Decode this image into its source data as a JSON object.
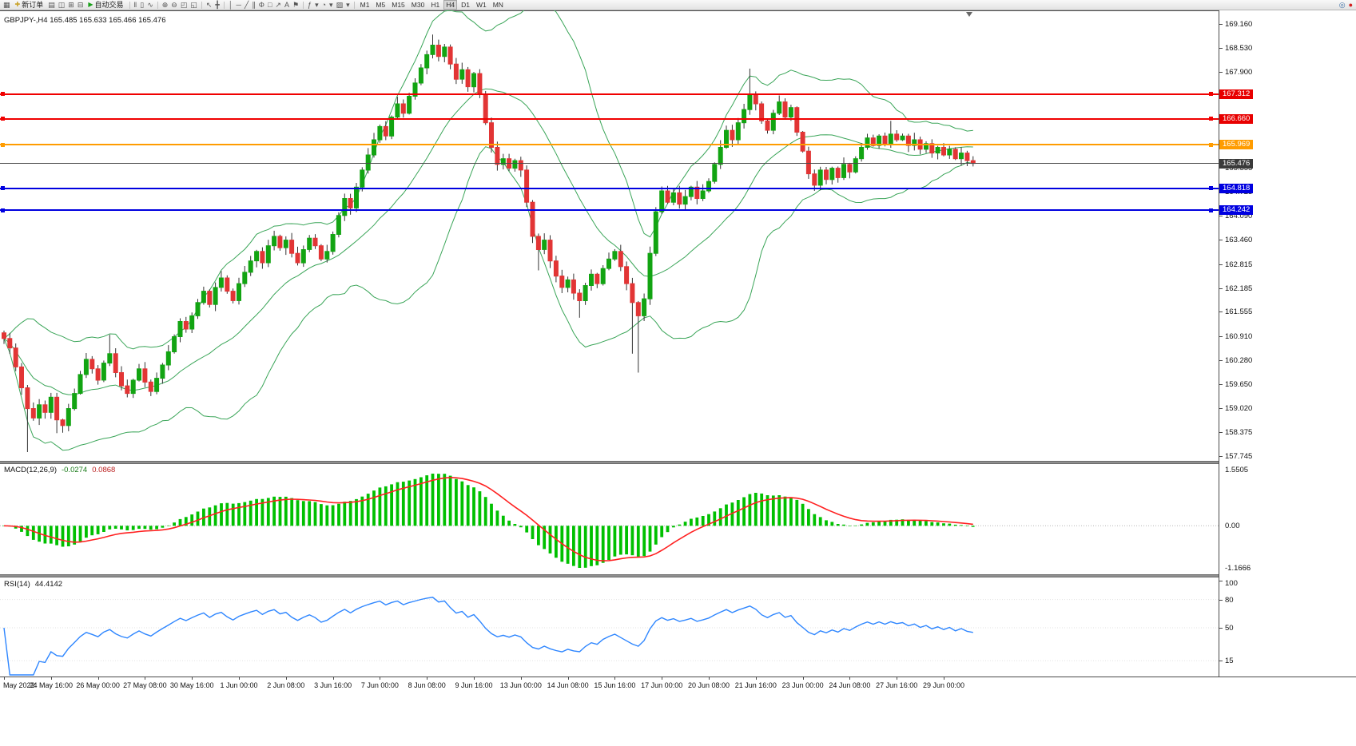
{
  "toolbar": {
    "active_timeframe": "H4",
    "items": [
      {
        "type": "icon",
        "name": "chart-window-icon",
        "glyph": "▦"
      },
      {
        "type": "button",
        "name": "new-order-button",
        "icon": "✚",
        "icon_color": "#c9a227",
        "label": "新订单"
      },
      {
        "type": "icon",
        "name": "profiles-icon",
        "glyph": "▤"
      },
      {
        "type": "icon",
        "name": "market-watch-icon",
        "glyph": "◫"
      },
      {
        "type": "icon",
        "name": "data-window-icon",
        "glyph": "⊞"
      },
      {
        "type": "icon",
        "name": "terminal-icon",
        "glyph": "⊟"
      },
      {
        "type": "button",
        "name": "autotrade-button",
        "icon": "▶",
        "icon_color": "#18a018",
        "label": "自动交易"
      },
      {
        "type": "sep"
      },
      {
        "type": "icon",
        "name": "bar-chart-type-icon",
        "glyph": "‖"
      },
      {
        "type": "icon",
        "name": "candlestick-chart-type-icon",
        "glyph": "▯"
      },
      {
        "type": "icon",
        "name": "line-chart-type-icon",
        "glyph": "∿"
      },
      {
        "type": "sep"
      },
      {
        "type": "icon",
        "name": "zoom-in-icon",
        "glyph": "⊕"
      },
      {
        "type": "icon",
        "name": "zoom-out-icon",
        "glyph": "⊖"
      },
      {
        "type": "icon",
        "name": "tile-windows-icon",
        "glyph": "◰"
      },
      {
        "type": "icon",
        "name": "cascade-windows-icon",
        "glyph": "◱"
      },
      {
        "type": "sep"
      },
      {
        "type": "icon",
        "name": "cursor-icon",
        "glyph": "↖"
      },
      {
        "type": "icon",
        "name": "crosshair-icon",
        "glyph": "╋"
      },
      {
        "type": "sep"
      },
      {
        "type": "icon",
        "name": "vertical-line-icon",
        "glyph": "│"
      },
      {
        "type": "icon",
        "name": "horizontal-line-icon",
        "glyph": "─"
      },
      {
        "type": "icon",
        "name": "trendline-icon",
        "glyph": "╱"
      },
      {
        "type": "icon",
        "name": "channel-icon",
        "glyph": "∥"
      },
      {
        "type": "icon",
        "name": "fibonacci-icon",
        "glyph": "Φ"
      },
      {
        "type": "icon",
        "name": "shapes-icon",
        "glyph": "□"
      },
      {
        "type": "icon",
        "name": "arrows-icon",
        "glyph": "↗"
      },
      {
        "type": "icon",
        "name": "text-icon",
        "glyph": "A"
      },
      {
        "type": "icon",
        "name": "label-icon",
        "glyph": "⚑"
      },
      {
        "type": "sep"
      },
      {
        "type": "icon",
        "name": "indicators-icon",
        "glyph": "ƒ"
      },
      {
        "type": "icon",
        "name": "indicators-dropdown-icon",
        "glyph": "▾"
      },
      {
        "type": "icon",
        "name": "periods-icon",
        "glyph": "◔"
      },
      {
        "type": "icon",
        "name": "periods-dropdown-icon",
        "glyph": "▾"
      },
      {
        "type": "icon",
        "name": "templates-icon",
        "glyph": "▨"
      },
      {
        "type": "icon",
        "name": "templates-dropdown-icon",
        "glyph": "▾"
      },
      {
        "type": "sep"
      },
      {
        "type": "tf",
        "label": "M1"
      },
      {
        "type": "tf",
        "label": "M5"
      },
      {
        "type": "tf",
        "label": "M15"
      },
      {
        "type": "tf",
        "label": "M30"
      },
      {
        "type": "tf",
        "label": "H1"
      },
      {
        "type": "tf",
        "label": "H4"
      },
      {
        "type": "tf",
        "label": "D1"
      },
      {
        "type": "tf",
        "label": "W1"
      },
      {
        "type": "tf",
        "label": "MN"
      },
      {
        "type": "spacer"
      },
      {
        "type": "icon",
        "name": "depth-of-market-icon",
        "glyph": "◎",
        "color": "#3a6ea5"
      },
      {
        "type": "icon",
        "name": "record-icon",
        "glyph": "●",
        "color": "#d22020"
      }
    ]
  },
  "chart_data": {
    "type": "candlestick",
    "symbol": "GBPJPY-",
    "timeframe": "H4",
    "title": "GBPJPY-,H4 165.485 165.633 165.466 165.476",
    "price_axis_range": [
      157.745,
      169.16
    ],
    "y_ticks": [
      {
        "price": 169.16,
        "label": "169.160"
      },
      {
        "price": 168.53,
        "label": "168.530"
      },
      {
        "price": 167.9,
        "label": "167.900"
      },
      {
        "price": 165.355,
        "label": "165.355"
      },
      {
        "price": 164.725,
        "label": "164.725"
      },
      {
        "price": 164.09,
        "label": "164.090"
      },
      {
        "price": 163.46,
        "label": "163.460"
      },
      {
        "price": 162.815,
        "label": "162.815"
      },
      {
        "price": 162.185,
        "label": "162.185"
      },
      {
        "price": 161.555,
        "label": "161.555"
      },
      {
        "price": 160.91,
        "label": "160.910"
      },
      {
        "price": 160.28,
        "label": "160.280"
      },
      {
        "price": 159.65,
        "label": "159.650"
      },
      {
        "price": 159.02,
        "label": "159.020"
      },
      {
        "price": 158.375,
        "label": "158.375"
      },
      {
        "price": 157.745,
        "label": "157.745"
      }
    ],
    "x_labels": [
      "May 2022",
      "24 May 16:00",
      "26 May 00:00",
      "27 May 08:00",
      "30 May 16:00",
      "1 Jun 00:00",
      "2 Jun 08:00",
      "3 Jun 16:00",
      "7 Jun 00:00",
      "8 Jun 08:00",
      "9 Jun 16:00",
      "13 Jun 00:00",
      "14 Jun 08:00",
      "15 Jun 16:00",
      "17 Jun 00:00",
      "20 Jun 08:00",
      "21 Jun 16:00",
      "23 Jun 00:00",
      "24 Jun 08:00",
      "27 Jun 16:00",
      "29 Jun 00:00"
    ],
    "candles_per_x_label": 8,
    "candles": {
      "first_open": 161.0,
      "closes": [
        160.85,
        160.6,
        160.1,
        159.55,
        159.0,
        158.75,
        159.1,
        158.9,
        159.3,
        158.7,
        158.55,
        159.0,
        159.4,
        159.9,
        160.3,
        160.05,
        159.75,
        160.2,
        160.45,
        159.95,
        159.6,
        159.4,
        159.75,
        160.05,
        159.7,
        159.45,
        159.8,
        160.15,
        160.5,
        160.9,
        161.3,
        161.1,
        161.45,
        161.8,
        162.1,
        161.75,
        162.2,
        162.45,
        162.1,
        161.85,
        162.3,
        162.6,
        162.9,
        163.15,
        162.85,
        163.3,
        163.55,
        163.25,
        163.45,
        163.1,
        162.85,
        163.2,
        163.5,
        163.3,
        162.95,
        163.15,
        163.6,
        164.1,
        164.55,
        164.3,
        164.85,
        165.3,
        165.7,
        166.1,
        166.45,
        166.2,
        166.7,
        167.05,
        166.8,
        167.25,
        167.6,
        168.0,
        168.35,
        168.6,
        168.3,
        168.55,
        168.1,
        167.7,
        167.95,
        167.5,
        167.85,
        167.3,
        166.55,
        165.9,
        165.45,
        165.6,
        165.35,
        165.55,
        165.3,
        164.45,
        163.55,
        163.2,
        163.45,
        162.9,
        162.5,
        162.2,
        162.4,
        162.05,
        161.85,
        162.25,
        162.55,
        162.3,
        162.7,
        162.95,
        163.15,
        162.75,
        162.3,
        161.8,
        161.45,
        161.9,
        163.1,
        164.2,
        164.75,
        164.45,
        164.7,
        164.4,
        164.6,
        164.85,
        164.55,
        164.75,
        165.0,
        165.45,
        165.9,
        166.35,
        166.1,
        166.55,
        166.9,
        167.3,
        167.05,
        166.6,
        166.35,
        166.8,
        167.1,
        166.7,
        166.95,
        166.3,
        165.8,
        165.2,
        164.9,
        165.3,
        165.05,
        165.35,
        165.1,
        165.45,
        165.25,
        165.6,
        165.9,
        166.15,
        165.95,
        166.2,
        166.0,
        166.25,
        166.1,
        166.2,
        165.95,
        166.1,
        165.85,
        166.0,
        165.75,
        165.9,
        165.7,
        165.85,
        165.6,
        165.75,
        165.55,
        165.476
      ],
      "wick_overrides": {
        "4": {
          "low": 157.85
        },
        "9": {
          "low": 158.35
        },
        "18": {
          "high": 160.95
        },
        "73": {
          "high": 168.88
        },
        "91": {
          "low": 162.65
        },
        "98": {
          "low": 161.4
        },
        "107": {
          "low": 160.45
        },
        "108": {
          "low": 159.95
        },
        "127": {
          "high": 167.98
        },
        "151": {
          "high": 166.6
        }
      }
    },
    "hlines": [
      {
        "name": "resistance-line-1",
        "price": 167.312,
        "label": "167.312",
        "color": "#f00000",
        "badge_bg": "#e80000",
        "thickness": 2,
        "handles": true
      },
      {
        "name": "resistance-line-2",
        "price": 166.66,
        "label": "166.660",
        "color": "#f00000",
        "badge_bg": "#e80000",
        "thickness": 2,
        "handles": true
      },
      {
        "name": "pivot-line",
        "price": 165.969,
        "label": "165.969",
        "color": "#ff9c00",
        "badge_bg": "#ff9c00",
        "thickness": 2,
        "handles": true
      },
      {
        "name": "support-line-1",
        "price": 164.818,
        "label": "164.818",
        "color": "#0000e0",
        "badge_bg": "#0000e0",
        "thickness": 2,
        "handles": true
      },
      {
        "name": "support-line-2",
        "price": 164.242,
        "label": "164.242",
        "color": "#0000e0",
        "badge_bg": "#0000e0",
        "thickness": 2,
        "handles": true
      },
      {
        "name": "bid-price-line",
        "price": 165.476,
        "label": "165.476",
        "color": "#4a4a4a",
        "badge_bg": "#3a3a3a",
        "thickness": 1,
        "handles": false
      }
    ],
    "indicators": {
      "bollinger": {
        "period": 20,
        "deviation": 2,
        "color": "#3aa558"
      },
      "macd": {
        "name": "MACD(12,26,9)",
        "fast": 12,
        "slow": 26,
        "signal": 9,
        "main_value": "-0.0274",
        "signal_value": "0.0868",
        "scale_labels": {
          "max": "1.5505",
          "zero": "0.00",
          "min": "-1.1666"
        },
        "hist_color": "#00c000",
        "signal_color": "#ff2020"
      },
      "rsi": {
        "name": "RSI(14)",
        "period": 14,
        "value": "44.4142",
        "color": "#2e86ff",
        "scale_labels": [
          {
            "v": 100,
            "label": "100"
          },
          {
            "v": 80,
            "label": "80"
          },
          {
            "v": 50,
            "label": "50"
          },
          {
            "v": 15,
            "label": "15"
          }
        ]
      }
    },
    "colors": {
      "candle_up": "#12a412",
      "candle_down": "#e23535",
      "wick": "#333333"
    }
  }
}
